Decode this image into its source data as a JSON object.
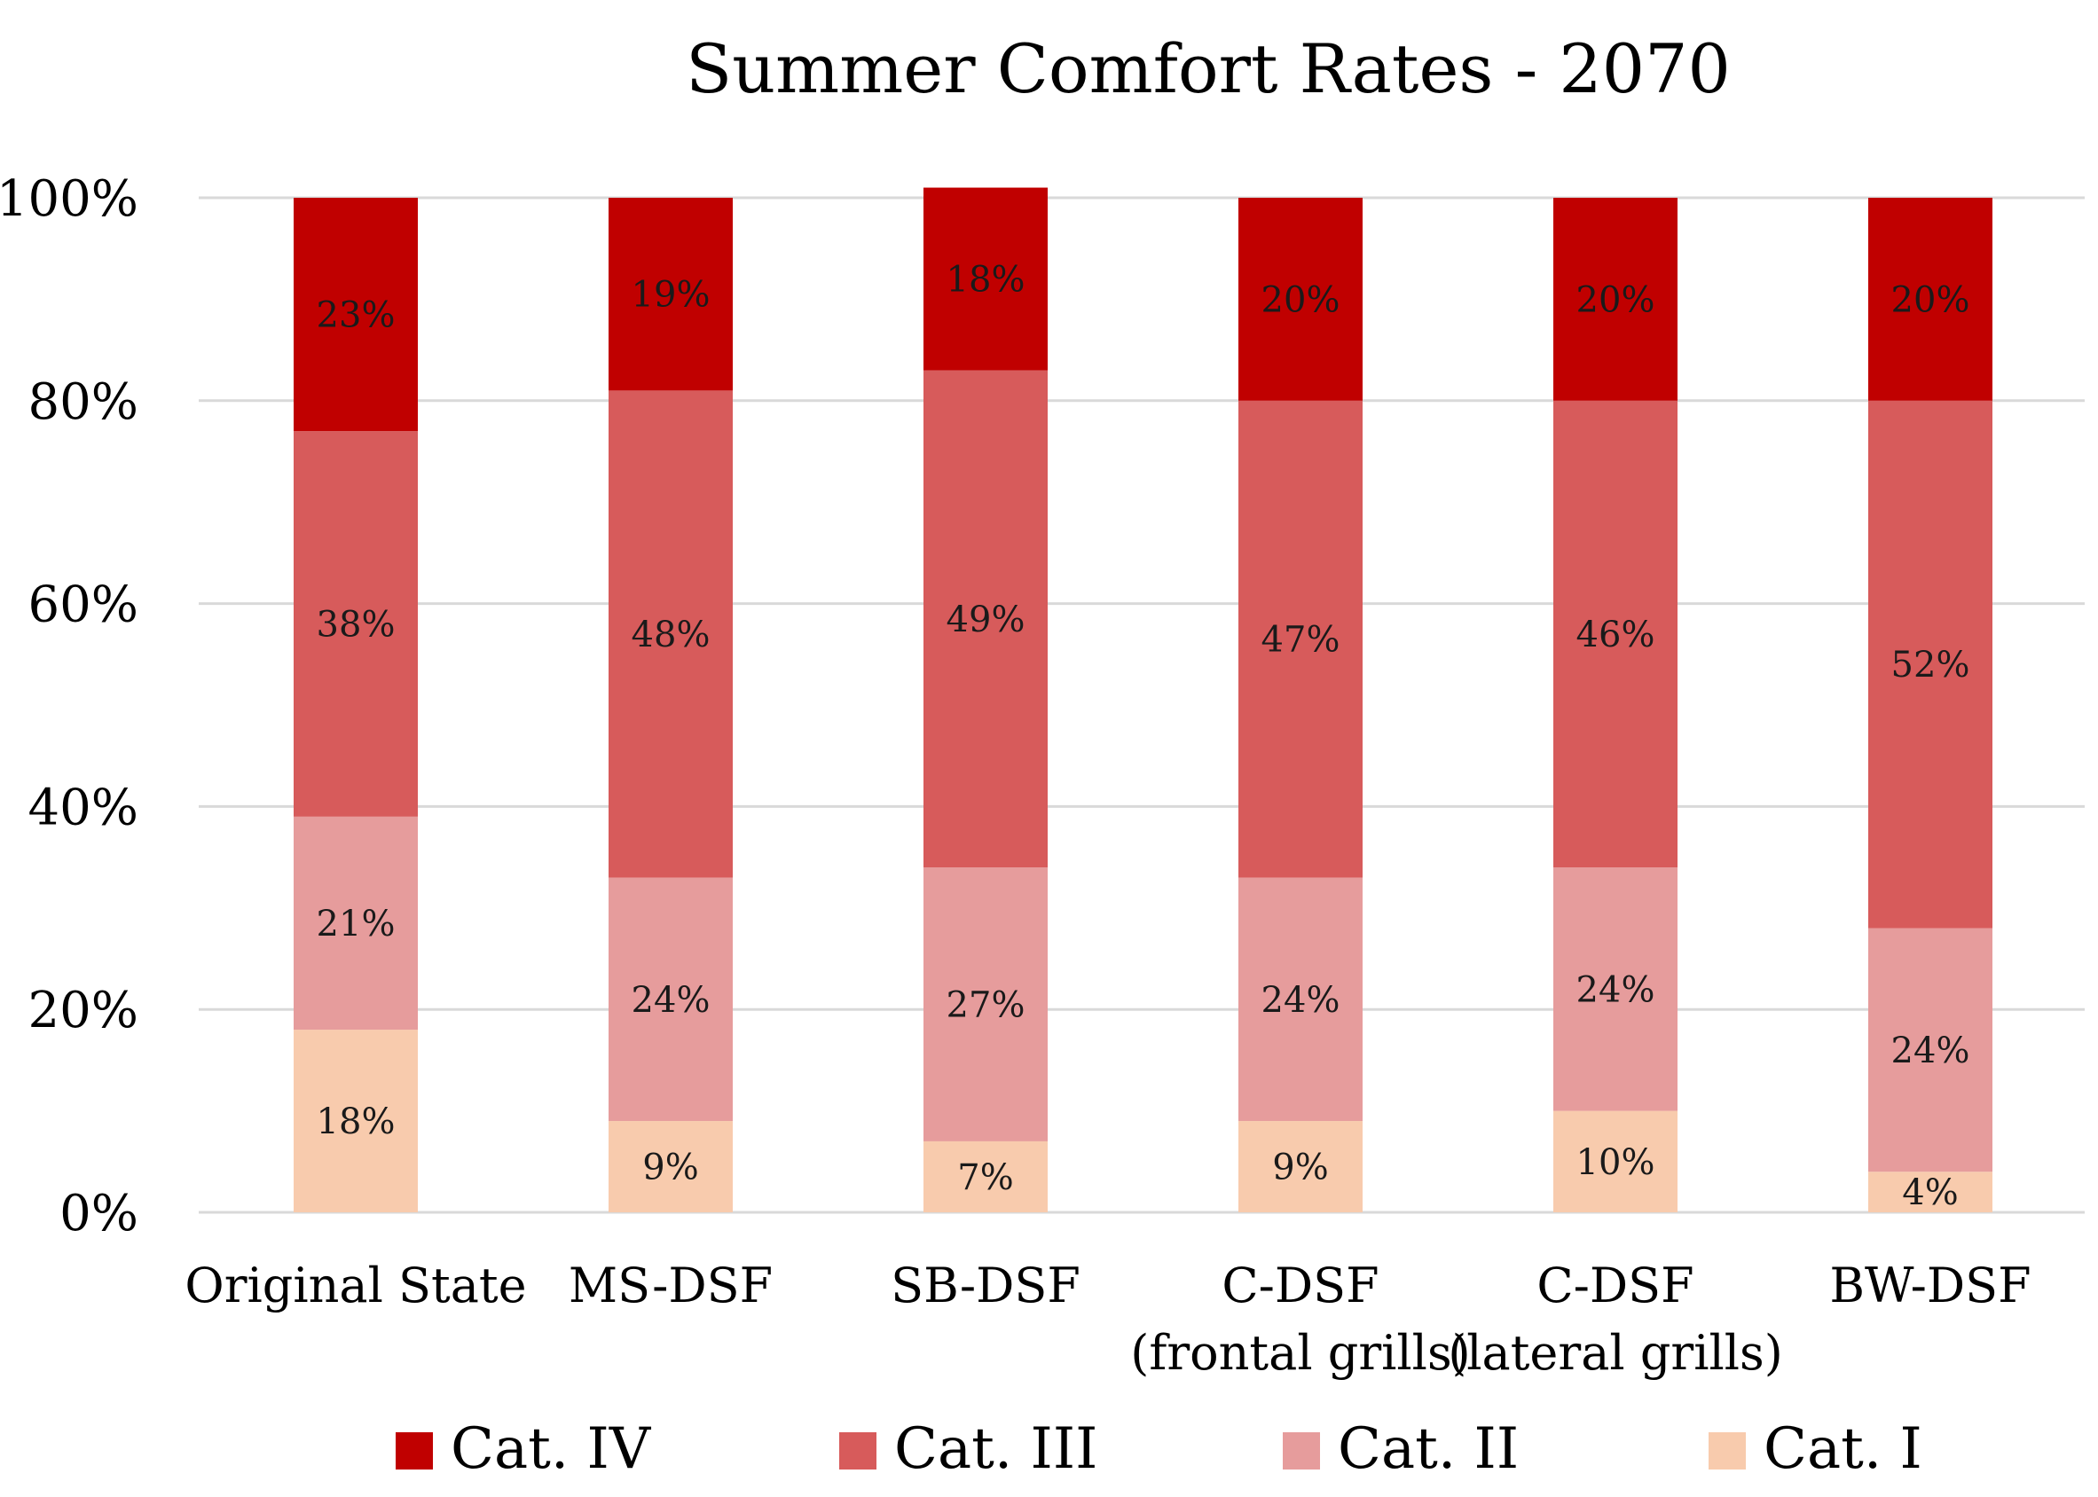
{
  "chart_data": {
    "type": "bar",
    "stacked": true,
    "percent": true,
    "title": "Summer Comfort Rates - 2070",
    "xlabel": "",
    "ylabel": "",
    "ylim": [
      0,
      100
    ],
    "yticks": [
      0,
      20,
      40,
      60,
      80,
      100
    ],
    "ytick_labels": [
      "0%",
      "20%",
      "40%",
      "60%",
      "80%",
      "100%"
    ],
    "grid": true,
    "legend_position": "bottom",
    "categories": [
      [
        "Original State"
      ],
      [
        "MS-DSF"
      ],
      [
        "SB-DSF"
      ],
      [
        "C-DSF",
        "(frontal grills)"
      ],
      [
        "C-DSF",
        "(lateral grills)"
      ],
      [
        "BW-DSF"
      ]
    ],
    "series": [
      {
        "name": "Cat. I",
        "color": "#f8cbad",
        "values": [
          18,
          9,
          7,
          9,
          10,
          4
        ],
        "labels": [
          "18%",
          "9%",
          "7%",
          "9%",
          "10%",
          "4%"
        ]
      },
      {
        "name": "Cat. II",
        "color": "#e69c9c",
        "values": [
          21,
          24,
          27,
          24,
          24,
          24
        ],
        "labels": [
          "21%",
          "24%",
          "27%",
          "24%",
          "24%",
          "24%"
        ]
      },
      {
        "name": "Cat. III",
        "color": "#d75b5b",
        "values": [
          38,
          48,
          49,
          47,
          46,
          52
        ],
        "labels": [
          "38%",
          "48%",
          "49%",
          "47%",
          "46%",
          "52%"
        ]
      },
      {
        "name": "Cat. IV",
        "color": "#c00000",
        "values": [
          23,
          19,
          18,
          20,
          20,
          20
        ],
        "labels": [
          "23%",
          "19%",
          "18%",
          "20%",
          "20%",
          "20%"
        ]
      }
    ],
    "legend_order": [
      "Cat. IV",
      "Cat. III",
      "Cat. II",
      "Cat. I"
    ]
  }
}
